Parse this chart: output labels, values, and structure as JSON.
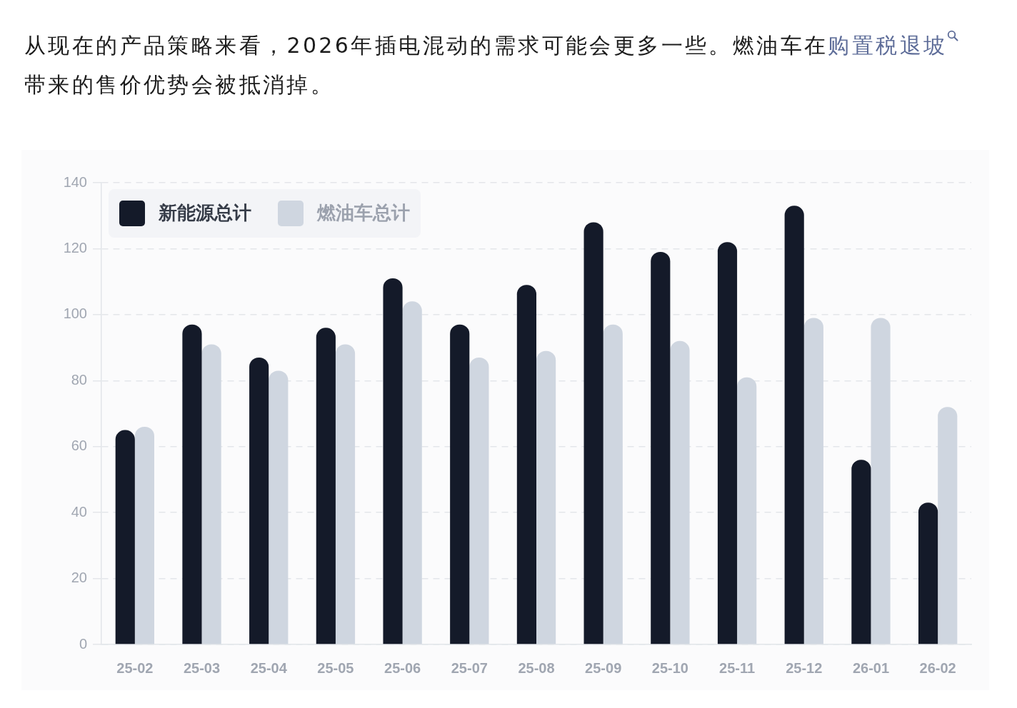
{
  "chart_data": {
    "type": "bar",
    "annotations": [
      "从现在的产品策略来看，2026年插电混动的需求可能会更多一些。燃油车在",
      "购置税退坡",
      "带来的售价优势会被抵消掉。"
    ],
    "categories": [
      "25-02",
      "25-03",
      "25-04",
      "25-05",
      "25-06",
      "25-07",
      "25-08",
      "25-09",
      "25-10",
      "25-11",
      "25-12",
      "26-01",
      "26-02"
    ],
    "series": [
      {
        "name": "新能源总计",
        "color": "#141a29",
        "values": [
          65,
          97,
          87,
          96,
          111,
          97,
          109,
          128,
          119,
          122,
          133,
          56,
          43
        ]
      },
      {
        "name": "燃油车总计",
        "color": "#cfd6e0",
        "values": [
          66,
          91,
          83,
          91,
          104,
          87,
          89,
          97,
          92,
          81,
          99,
          99,
          72
        ]
      }
    ],
    "ylim": [
      0,
      140
    ],
    "yticks": [
      0,
      20,
      40,
      60,
      80,
      100,
      120,
      140
    ],
    "grid": "y",
    "legend": "top left"
  }
}
